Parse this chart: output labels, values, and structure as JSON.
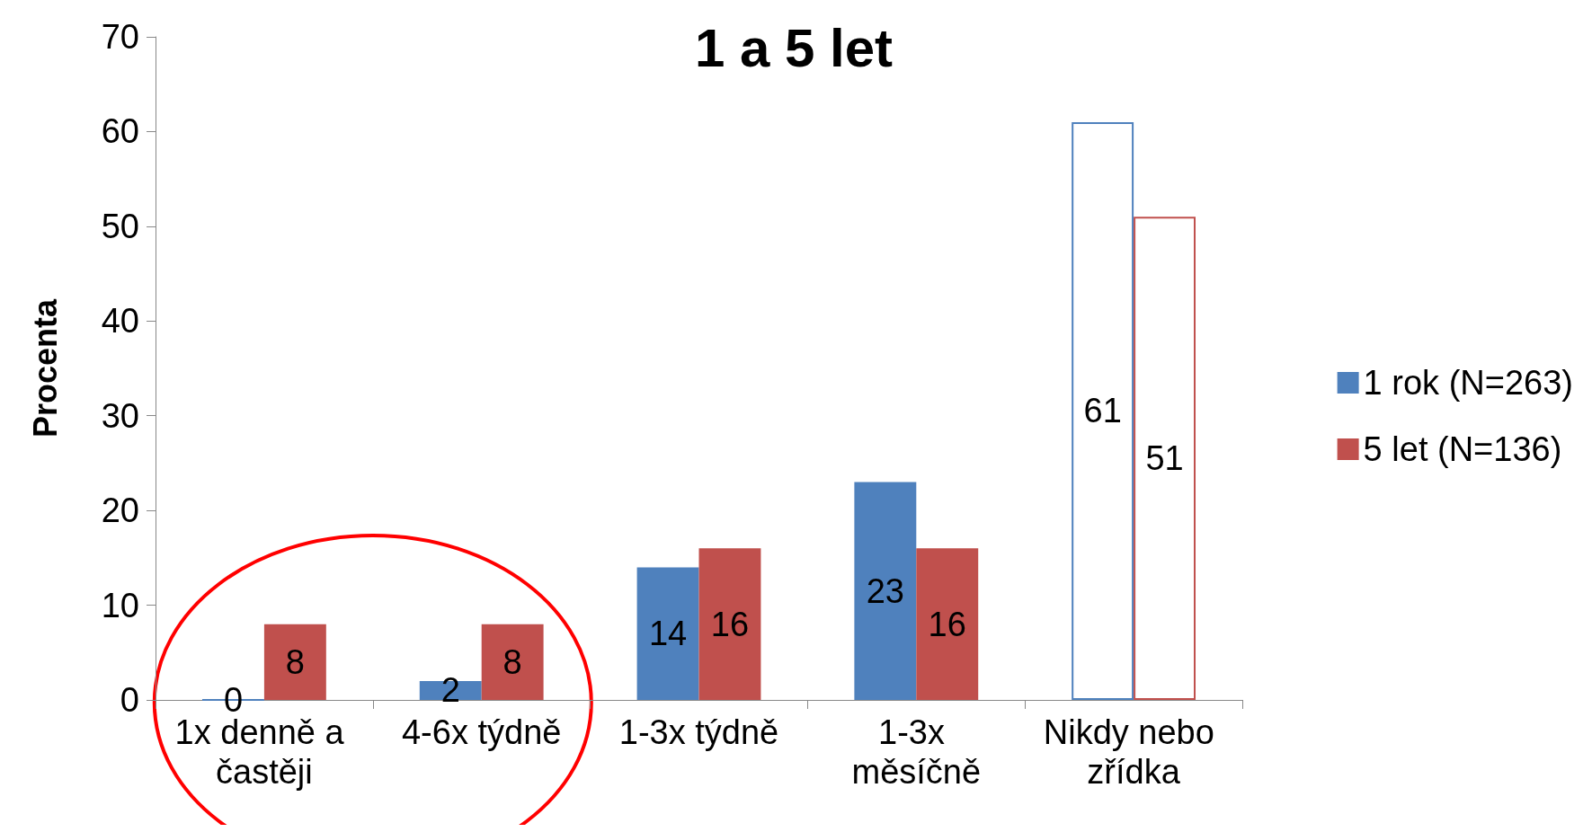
{
  "chart_data": {
    "type": "bar",
    "title": "1 a 5 let",
    "ylabel": "Procenta",
    "categories": [
      "1x denně a častěji",
      "4-6x týdně",
      "1-3x týdně",
      "1-3x měsíčně",
      "Nikdy nebo zřídka"
    ],
    "series": [
      {
        "name": "1 rok (N=263)",
        "color": "#4f81bd",
        "colors": [
          "#4f81bd",
          "#4f81bd",
          "#4f81bd",
          "#4f81bd",
          "#ffffff"
        ],
        "values": [
          0,
          2,
          14,
          23,
          61
        ]
      },
      {
        "name": "5 let (N=136)",
        "color": "#c0504d",
        "colors": [
          "#c0504d",
          "#c0504d",
          "#c0504d",
          "#c0504d",
          "#ffffff"
        ],
        "values": [
          8,
          8,
          16,
          16,
          51
        ]
      }
    ],
    "ylim": [
      0,
      70
    ],
    "yticks": [
      0,
      10,
      20,
      30,
      40,
      50,
      60,
      70
    ],
    "grid": false,
    "legend": "right",
    "data_labels": true
  }
}
